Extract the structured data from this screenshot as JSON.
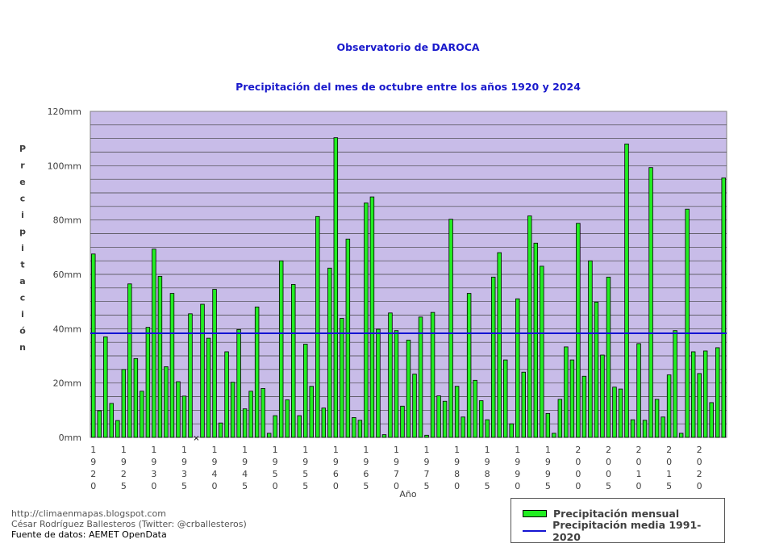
{
  "chart_data": {
    "type": "bar",
    "title": "Observatorio de DAROCA",
    "subtitle": "Precipitación del mes de octubre entre los años 1920 y 2024",
    "ylabel": "Precipitación",
    "xlabel": "Año",
    "ylim": [
      0,
      120
    ],
    "y_ticks": [
      "0mm",
      "20mm",
      "40mm",
      "60mm",
      "80mm",
      "100mm",
      "120mm"
    ],
    "x_tick_labels": [
      "1920",
      "1925",
      "1930",
      "1935",
      "1940",
      "1945",
      "1950",
      "1955",
      "1960",
      "1965",
      "1970",
      "1975",
      "1980",
      "1985",
      "1990",
      "1995",
      "2000",
      "2005",
      "2010",
      "2015",
      "2020"
    ],
    "x_start": 1920,
    "grid": true,
    "legend_position": "bottom-right",
    "series": [
      {
        "name": "Precipitación mensual",
        "color": "#22ee22",
        "values": [
          67.5,
          9.8,
          37,
          12.5,
          6.2,
          25,
          56.5,
          29,
          17,
          40.5,
          69.3,
          59.3,
          26,
          53,
          20.5,
          15.2,
          45.5,
          null,
          49,
          36.5,
          54.5,
          5.3,
          31.5,
          20.3,
          39.7,
          10.5,
          17,
          48,
          18,
          1.5,
          8,
          65,
          13.8,
          56.3,
          8,
          34.3,
          18.8,
          81.3,
          10.8,
          62.3,
          110.3,
          43.8,
          73,
          7.3,
          6.3,
          86.3,
          88.5,
          39.8,
          1,
          45.8,
          39.3,
          11.5,
          35.8,
          23.3,
          44.3,
          0.8,
          46,
          15.3,
          13.3,
          80.3,
          18.8,
          7.5,
          53,
          21,
          13.5,
          6.5,
          59,
          68,
          28.5,
          5,
          51,
          24,
          81.5,
          71.5,
          63,
          8.8,
          1.5,
          14,
          33.3,
          28.5,
          78.8,
          22.5,
          65,
          49.8,
          30.3,
          59,
          18.5,
          17.8,
          108,
          6.5,
          34.5,
          6.3,
          99.3,
          14,
          7.5,
          23,
          39.3,
          1.5,
          84,
          31.5,
          23.5,
          31.8,
          12.8,
          33,
          95.5
        ]
      },
      {
        "name": "Precipitación media 1991-2020",
        "color": "#1414d2",
        "value": 38.3
      }
    ]
  },
  "credits": {
    "blog": "http://climaenmapas.blogspot.com",
    "author": "César Rodríguez Ballesteros (Twitter: @crballesteros)",
    "source": "Fuente de datos: AEMET OpenData"
  },
  "colors": {
    "plot_background": "#c8bce8",
    "bar_fill": "#22ee22",
    "mean_line": "#1414d2",
    "title": "#1a1acc"
  }
}
